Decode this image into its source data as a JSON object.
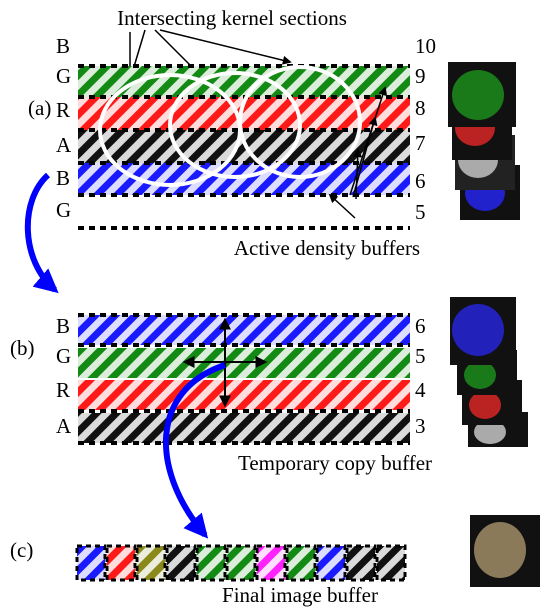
{
  "panel_a": {
    "label": "(a)",
    "title": "Intersecting kernel sections",
    "left_labels": [
      "B",
      "G",
      "R",
      "A",
      "B",
      "G"
    ],
    "right_labels": [
      "10",
      "9",
      "8",
      "7",
      "6",
      "5"
    ],
    "caption": "Active density buffers"
  },
  "panel_b": {
    "label": "(b)",
    "left_labels": [
      "B",
      "G",
      "R",
      "A"
    ],
    "right_labels": [
      "6",
      "5",
      "4",
      "3"
    ],
    "caption": "Temporary copy buffer"
  },
  "panel_c": {
    "label": "(c)",
    "caption": "Final image buffer"
  }
}
